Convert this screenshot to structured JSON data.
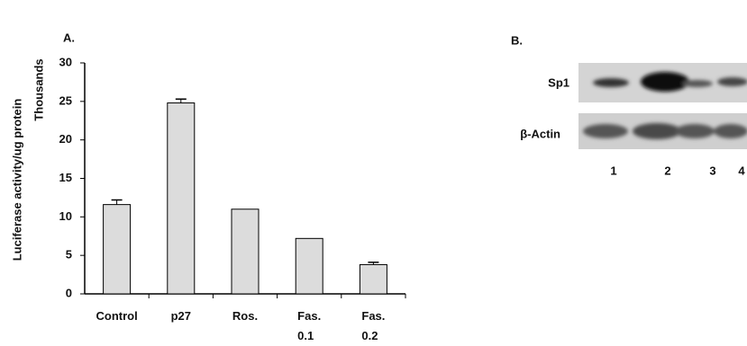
{
  "chart_data": {
    "type": "bar",
    "panel_label": "A.",
    "y_label": "Luciferase activity/ug protein",
    "y_unit_label": "Thousands",
    "categories": [
      "Control",
      "p27",
      "Ros.",
      "Fas.\n0.1",
      "Fas.\n0.2"
    ],
    "values": [
      11.6,
      24.8,
      11.0,
      7.2,
      3.8
    ],
    "errors": [
      0.6,
      0.5,
      null,
      null,
      0.3
    ],
    "color": "#dcdcdc",
    "ylim": [
      0,
      30
    ],
    "yticks": [
      0,
      5,
      10,
      15,
      20,
      25,
      30
    ],
    "grid": false
  },
  "blot": {
    "panel_label": "B.",
    "rows": [
      "Sp1",
      "β-Actin"
    ],
    "lanes": [
      "1",
      "2",
      "3",
      "4"
    ]
  }
}
